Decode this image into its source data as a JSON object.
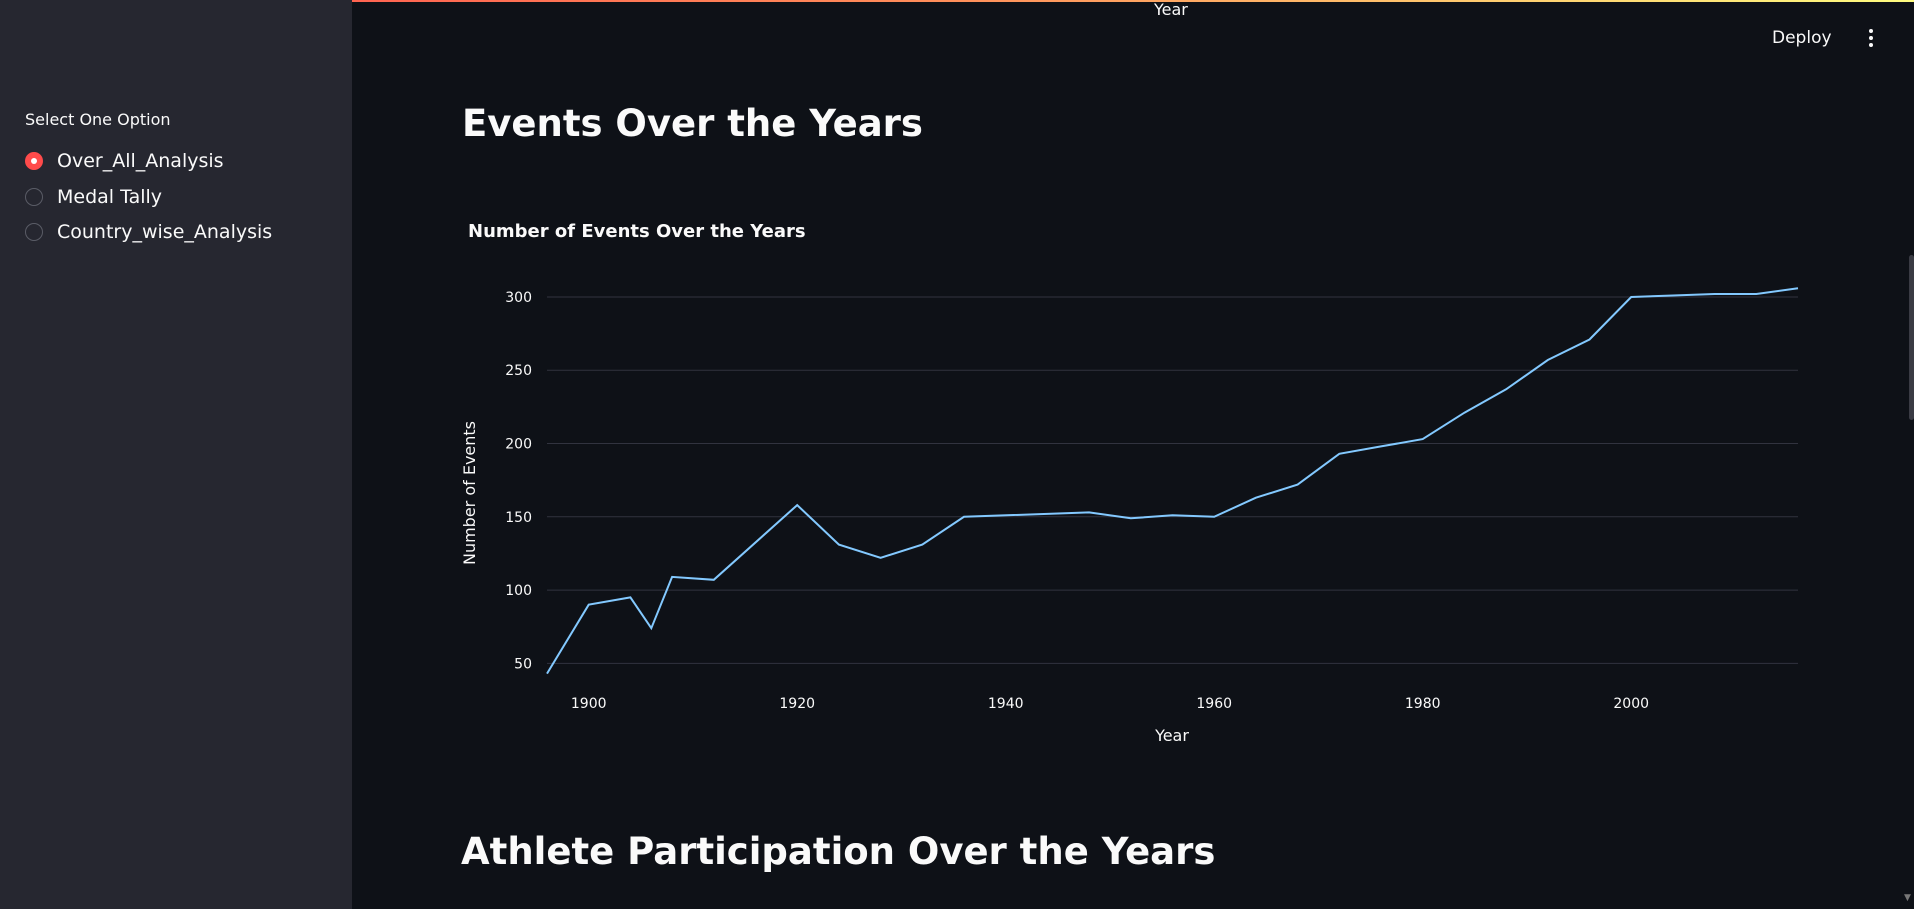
{
  "sidebar": {
    "radio_label": "Select One Option",
    "options": [
      {
        "label": "Over_All_Analysis",
        "checked": true
      },
      {
        "label": "Medal Tally",
        "checked": false
      },
      {
        "label": "Country_wise_Analysis",
        "checked": false
      }
    ]
  },
  "header": {
    "deploy_label": "Deploy",
    "menu_icon": "more-vertical-icon",
    "top_axis_label": "Year"
  },
  "main": {
    "section1_title": "Events Over the Years",
    "section2_title": "Athlete Participation Over the Years"
  },
  "colors": {
    "accent": "#ff4b4b",
    "line": "#83c9ff",
    "background": "#0e1117",
    "sidebar": "#262730"
  },
  "chart_data": {
    "type": "line",
    "title": "Number of Events Over the Years",
    "xlabel": "Year",
    "ylabel": "Number of Events",
    "xlim": [
      1896,
      2016
    ],
    "ylim": [
      40,
      330
    ],
    "xticks": [
      1900,
      1920,
      1940,
      1960,
      1980,
      2000
    ],
    "yticks": [
      50,
      100,
      150,
      200,
      250,
      300
    ],
    "grid": "horizontal",
    "series": [
      {
        "x": [
          1896,
          1900,
          1904,
          1906,
          1908,
          1912,
          1920,
          1924,
          1928,
          1932,
          1936,
          1948,
          1952,
          1956,
          1960,
          1964,
          1968,
          1972,
          1976,
          1980,
          1984,
          1988,
          1992,
          1996,
          2000,
          2004,
          2008,
          2012,
          2016
        ],
        "y": [
          43,
          90,
          95,
          74,
          109,
          107,
          158,
          131,
          122,
          131,
          150,
          153,
          149,
          151,
          150,
          163,
          172,
          193,
          198,
          203,
          221,
          237,
          257,
          271,
          300,
          301,
          302,
          302,
          306
        ]
      }
    ]
  }
}
